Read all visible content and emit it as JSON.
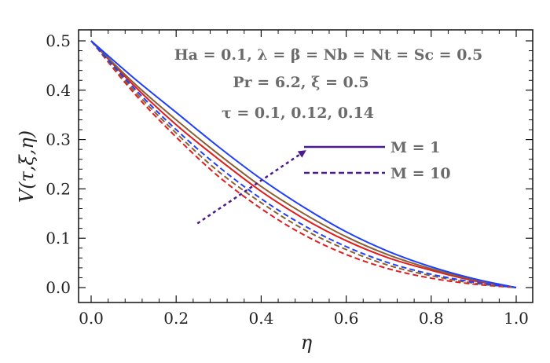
{
  "chart_data": {
    "type": "line",
    "xlabel": "η",
    "ylabel": "V(τ,ξ,η)",
    "xlim": [
      0,
      1
    ],
    "ylim": [
      0,
      0.5
    ],
    "xticks": [
      "0.0",
      "0.2",
      "0.4",
      "0.6",
      "0.8",
      "1.0"
    ],
    "yticks": [
      "0.0",
      "0.1",
      "0.2",
      "0.3",
      "0.4",
      "0.5"
    ],
    "grid": false,
    "annotations": [
      "Ha = 0.1, λ = β = Nb = Nt = Sc = 0.5",
      "Pr = 6.2, ξ = 0.5",
      "τ = 0.1, 0.12, 0.14"
    ],
    "legend": [
      {
        "label": "M = 1",
        "style": "solid"
      },
      {
        "label": "M = 10",
        "style": "dashed"
      }
    ],
    "x": [
      0,
      0.1,
      0.2,
      0.3,
      0.4,
      0.5,
      0.6,
      0.7,
      0.8,
      0.9,
      1.0
    ],
    "series": [
      {
        "values": [
          0.5,
          0.41,
          0.33,
          0.26,
          0.195,
          0.14,
          0.095,
          0.06,
          0.035,
          0.014,
          0.0
        ],
        "style": "solid",
        "color": "#e41a1c"
      },
      {
        "values": [
          0.5,
          0.415,
          0.34,
          0.27,
          0.205,
          0.15,
          0.103,
          0.066,
          0.038,
          0.016,
          0.0
        ],
        "style": "solid",
        "color": "#8b6030"
      },
      {
        "values": [
          0.5,
          0.425,
          0.355,
          0.285,
          0.22,
          0.163,
          0.113,
          0.073,
          0.042,
          0.018,
          0.0
        ],
        "style": "solid",
        "color": "#1f3fff"
      },
      {
        "values": [
          0.5,
          0.395,
          0.305,
          0.225,
          0.16,
          0.107,
          0.067,
          0.038,
          0.019,
          0.007,
          0.0
        ],
        "style": "dashed",
        "color": "#e41a1c"
      },
      {
        "values": [
          0.5,
          0.4,
          0.313,
          0.235,
          0.172,
          0.118,
          0.077,
          0.045,
          0.024,
          0.009,
          0.0
        ],
        "style": "dashed",
        "color": "#8b6030"
      },
      {
        "values": [
          0.5,
          0.405,
          0.32,
          0.245,
          0.18,
          0.126,
          0.083,
          0.05,
          0.027,
          0.011,
          0.0
        ],
        "style": "dashed",
        "color": "#1f3fff"
      }
    ],
    "arrow": {
      "from": [
        0.25,
        0.13
      ],
      "to": [
        0.5,
        0.275
      ],
      "color": "#4b1a8c"
    },
    "legend_line_color": "#4b1a8c"
  }
}
